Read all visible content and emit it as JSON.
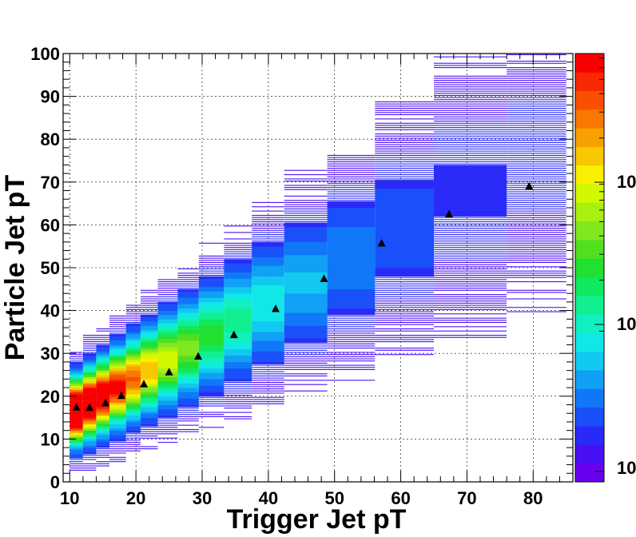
{
  "chart_data": {
    "type": "heatmap",
    "title": "",
    "xlabel": "Trigger Jet pT",
    "ylabel": "Particle Jet pT",
    "xlim": [
      9,
      86
    ],
    "ylim": [
      0,
      100
    ],
    "x_ticks": [
      10,
      20,
      30,
      40,
      50,
      60,
      70,
      80
    ],
    "y_ticks": [
      0,
      10,
      20,
      30,
      40,
      50,
      60,
      70,
      80,
      90,
      100
    ],
    "grid": true,
    "log_z": true,
    "colorbar_labels": [
      "10",
      "10",
      "10"
    ],
    "colorbar_colors": [
      "#6a00f0",
      "#4a10f5",
      "#2a2af8",
      "#1a50fa",
      "#1078f8",
      "#10a0f5",
      "#10c8f0",
      "#10e8e8",
      "#10f0c0",
      "#10f090",
      "#10e860",
      "#20e030",
      "#50e020",
      "#80e820",
      "#a8f010",
      "#d0f800",
      "#f8f000",
      "#f8c800",
      "#f8a000",
      "#f87800",
      "#f85000",
      "#f82800",
      "#f80000"
    ],
    "column_edges": [
      10,
      12,
      14,
      16,
      18.5,
      20.7,
      23.3,
      26.3,
      29.5,
      33.3,
      37.5,
      42.4,
      48.9,
      56.1,
      65,
      76,
      85
    ],
    "profile_markers": [
      {
        "x": 11.0,
        "y": 17.4
      },
      {
        "x": 13.0,
        "y": 17.3
      },
      {
        "x": 15.4,
        "y": 18.4
      },
      {
        "x": 17.8,
        "y": 20.1
      },
      {
        "x": 21.2,
        "y": 22.8
      },
      {
        "x": 25.0,
        "y": 25.6
      },
      {
        "x": 29.4,
        "y": 29.3
      },
      {
        "x": 34.8,
        "y": 34.3
      },
      {
        "x": 41.1,
        "y": 40.4
      },
      {
        "x": 48.4,
        "y": 47.4
      },
      {
        "x": 57.1,
        "y": 55.7
      },
      {
        "x": 67.3,
        "y": 62.5
      },
      {
        "x": 79.4,
        "y": 69.0
      }
    ]
  }
}
